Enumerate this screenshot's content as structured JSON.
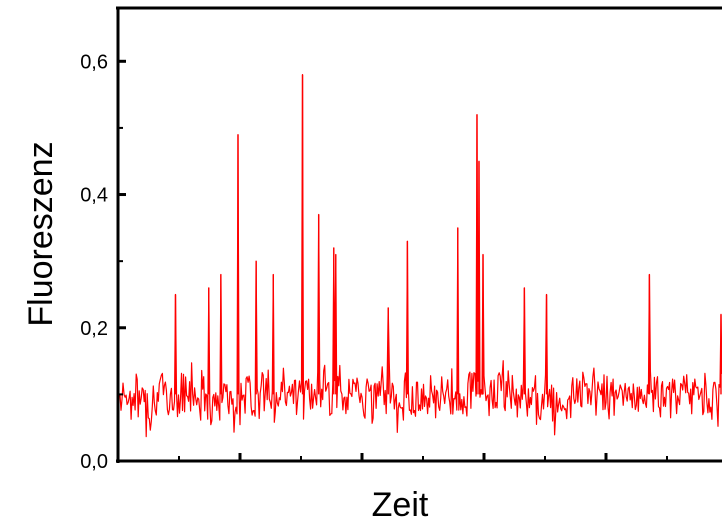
{
  "chart_data": {
    "type": "line",
    "title": "",
    "xlabel": "Zeit",
    "ylabel": "Fluoreszenz",
    "ylim": [
      0.0,
      0.68
    ],
    "yticks": [
      {
        "value": 0.0,
        "label": "0,0"
      },
      {
        "value": 0.2,
        "label": "0,2"
      },
      {
        "value": 0.4,
        "label": "0,4"
      },
      {
        "value": 0.6,
        "label": "0,6"
      }
    ],
    "x_tick_count": 5,
    "x_tick_labels_shown": false,
    "grid": false,
    "series": [
      {
        "color": "#ff0000",
        "baseline": 0.1,
        "noise": 0.035,
        "points": 600,
        "seed": 7,
        "peaks": [
          {
            "x": 0.095,
            "y": 0.25
          },
          {
            "x": 0.15,
            "y": 0.26
          },
          {
            "x": 0.17,
            "y": 0.28
          },
          {
            "x": 0.199,
            "y": 0.49
          },
          {
            "x": 0.229,
            "y": 0.3
          },
          {
            "x": 0.257,
            "y": 0.28
          },
          {
            "x": 0.306,
            "y": 0.58
          },
          {
            "x": 0.332,
            "y": 0.37
          },
          {
            "x": 0.357,
            "y": 0.32
          },
          {
            "x": 0.36,
            "y": 0.31
          },
          {
            "x": 0.448,
            "y": 0.23
          },
          {
            "x": 0.479,
            "y": 0.33
          },
          {
            "x": 0.563,
            "y": 0.35
          },
          {
            "x": 0.595,
            "y": 0.52
          },
          {
            "x": 0.598,
            "y": 0.45
          },
          {
            "x": 0.604,
            "y": 0.31
          },
          {
            "x": 0.673,
            "y": 0.26
          },
          {
            "x": 0.709,
            "y": 0.25
          },
          {
            "x": 0.88,
            "y": 0.28
          },
          {
            "x": 0.998,
            "y": 0.22
          }
        ]
      }
    ]
  }
}
